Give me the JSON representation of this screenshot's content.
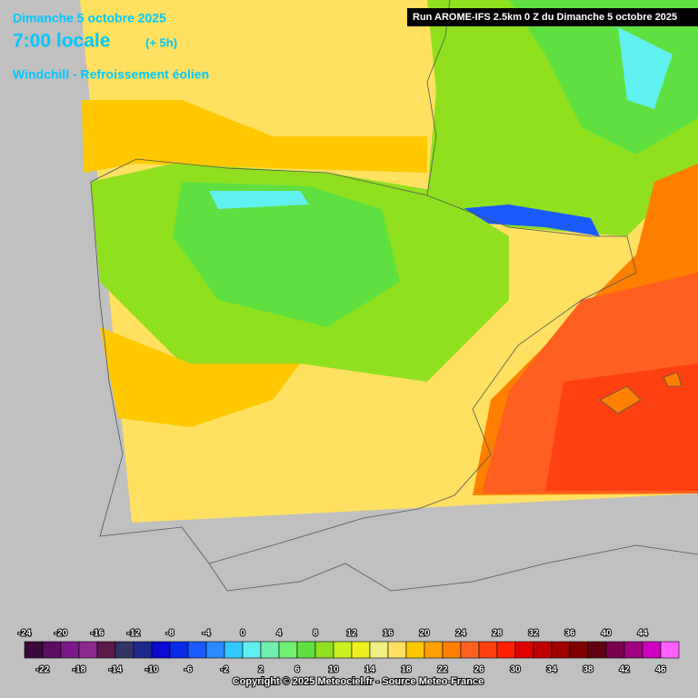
{
  "header": {
    "date": "Dimanche 5 octobre 2025",
    "time": "7:00 locale",
    "offset": "(+ 5h)",
    "field": "Windchill - Refroissement éolien",
    "run": "Run AROME-IFS 2.5km 0 Z du Dimanche 5 octobre 2025"
  },
  "legend": {
    "labels": [
      -24,
      -22,
      -20,
      -18,
      -16,
      -14,
      -12,
      -10,
      -8,
      -6,
      -4,
      -2,
      0,
      2,
      4,
      6,
      8,
      10,
      12,
      14,
      16,
      18,
      20,
      22,
      24,
      26,
      28,
      30,
      32,
      34,
      36,
      38,
      40,
      42,
      44,
      46
    ],
    "colors": [
      "#3a0a3a",
      "#5a0f5f",
      "#7a1a8a",
      "#8a2a8e",
      "#5a1a4a",
      "#333366",
      "#1c2a8c",
      "#0a0ad0",
      "#0a2ae8",
      "#1a5aff",
      "#2a8aff",
      "#30c8ff",
      "#60f0f0",
      "#70f0b0",
      "#70f070",
      "#60e040",
      "#90e020",
      "#c8f020",
      "#f0f020",
      "#f0f080",
      "#ffe060",
      "#ffc800",
      "#ffa000",
      "#ff8000",
      "#ff6020",
      "#ff4010",
      "#ff2000",
      "#e00000",
      "#c00000",
      "#a00000",
      "#800000",
      "#600010",
      "#7a0050",
      "#a00080",
      "#d000c0",
      "#ff60ff"
    ]
  },
  "footer": {
    "copyright": "Copyright © 2025 Meteociel.fr - Source Meteo-France"
  }
}
